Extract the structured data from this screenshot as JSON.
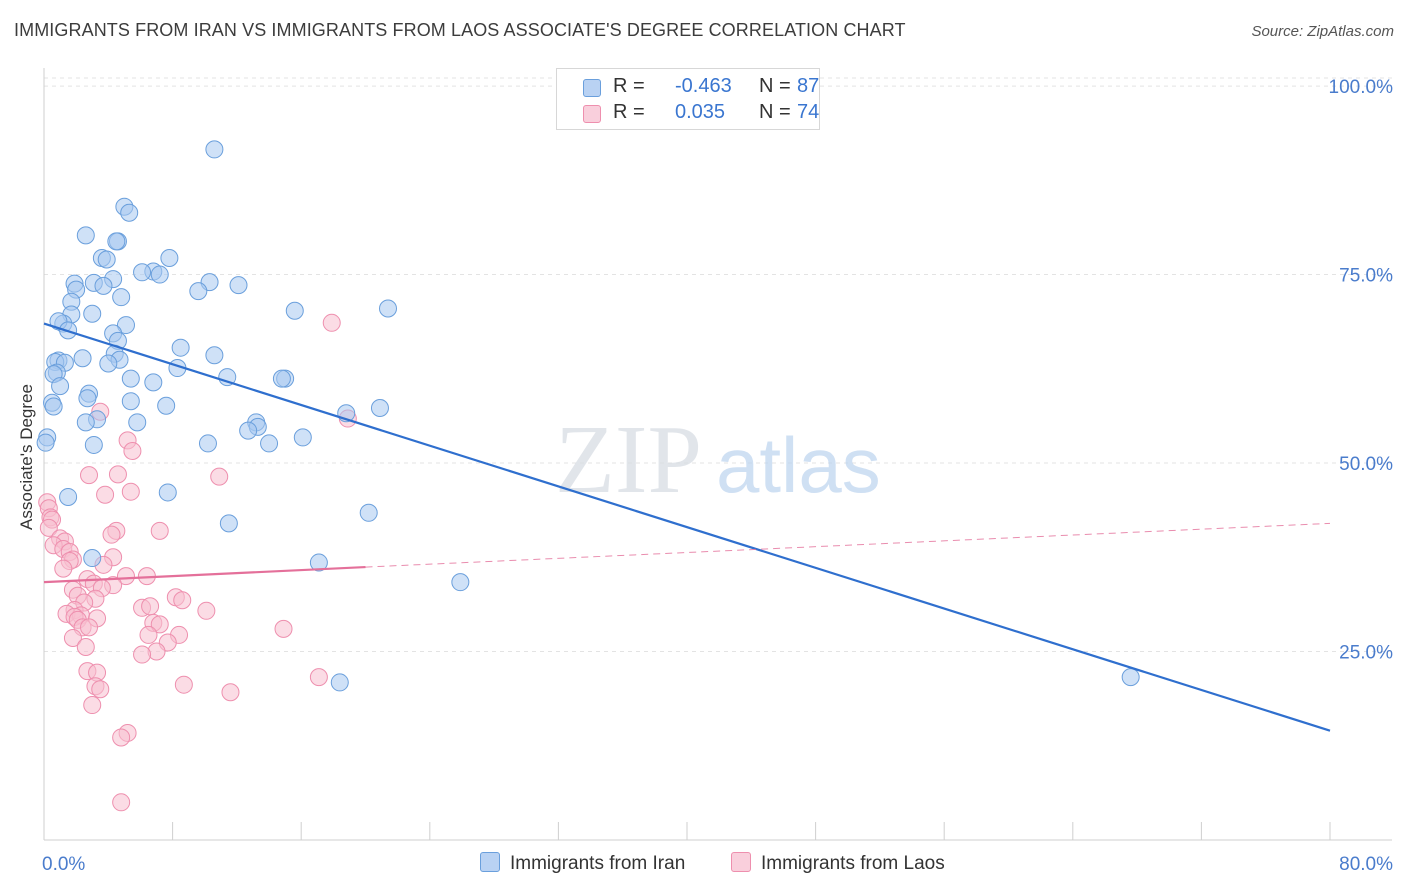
{
  "title": "IMMIGRANTS FROM IRAN VS IMMIGRANTS FROM LAOS ASSOCIATE'S DEGREE CORRELATION CHART",
  "source": "Source: ZipAtlas.com",
  "watermark": {
    "part1": "ZIP",
    "part2": "atlas"
  },
  "legend": {
    "rows": [
      {
        "r_label": "R =",
        "r_value": "-0.463",
        "n_label": "N =",
        "n_value": "87"
      },
      {
        "r_label": "R =",
        "r_value": "0.035",
        "n_label": "N =",
        "n_value": "74"
      }
    ]
  },
  "colors": {
    "iran_fill": "#a8c8f0",
    "iran_stroke": "#6a9fdc",
    "iran_line": "#2f6fce",
    "laos_fill": "#f7bfd0",
    "laos_stroke": "#ee8fae",
    "laos_line": "#e4709a",
    "axis_text": "#4a7ccc",
    "grid": "#e3e3e3"
  },
  "chart_data": {
    "type": "scatter",
    "title": "IMMIGRANTS FROM IRAN VS IMMIGRANTS FROM LAOS ASSOCIATE'S DEGREE CORRELATION CHART",
    "xlabel": "",
    "ylabel": "Associate's Degree",
    "xlim": [
      0,
      80
    ],
    "ylim": [
      0,
      102
    ],
    "x_tick_labels": [
      "0.0%",
      "80.0%"
    ],
    "y_ticks": [
      {
        "value": 25,
        "label": "25.0%"
      },
      {
        "value": 50,
        "label": "50.0%"
      },
      {
        "value": 75,
        "label": "75.0%"
      },
      {
        "value": 100,
        "label": "100.0%"
      }
    ],
    "grid": true,
    "legend_position": "bottom-center",
    "series": [
      {
        "name": "Immigrants from Iran",
        "r": -0.463,
        "n": 87,
        "trend": {
          "x1": 0,
          "y1": 68.5,
          "x2": 80,
          "y2": 14.5,
          "style": "solid"
        },
        "points": [
          [
            10.6,
            91.6
          ],
          [
            5.0,
            84.0
          ],
          [
            5.3,
            83.2
          ],
          [
            2.6,
            80.2
          ],
          [
            4.6,
            79.4
          ],
          [
            4.5,
            79.4
          ],
          [
            3.6,
            77.2
          ],
          [
            3.9,
            77.0
          ],
          [
            7.8,
            77.2
          ],
          [
            6.8,
            75.4
          ],
          [
            7.2,
            75.0
          ],
          [
            6.1,
            75.3
          ],
          [
            4.3,
            74.4
          ],
          [
            3.1,
            73.9
          ],
          [
            1.9,
            73.8
          ],
          [
            3.7,
            73.5
          ],
          [
            10.3,
            74.0
          ],
          [
            12.1,
            73.6
          ],
          [
            9.6,
            72.8
          ],
          [
            2.0,
            73.0
          ],
          [
            4.8,
            72.0
          ],
          [
            1.7,
            71.4
          ],
          [
            15.6,
            70.2
          ],
          [
            21.4,
            70.5
          ],
          [
            3.0,
            69.8
          ],
          [
            1.7,
            69.7
          ],
          [
            1.2,
            68.5
          ],
          [
            0.9,
            68.8
          ],
          [
            5.1,
            68.3
          ],
          [
            1.5,
            67.6
          ],
          [
            4.3,
            67.2
          ],
          [
            4.6,
            66.2
          ],
          [
            8.5,
            65.3
          ],
          [
            4.4,
            64.5
          ],
          [
            2.4,
            63.9
          ],
          [
            10.6,
            64.3
          ],
          [
            4.7,
            63.7
          ],
          [
            0.9,
            63.6
          ],
          [
            0.7,
            63.4
          ],
          [
            1.3,
            63.3
          ],
          [
            4.0,
            63.2
          ],
          [
            8.3,
            62.6
          ],
          [
            0.8,
            62.0
          ],
          [
            0.6,
            61.8
          ],
          [
            5.4,
            61.2
          ],
          [
            15.0,
            61.2
          ],
          [
            14.8,
            61.2
          ],
          [
            11.4,
            61.4
          ],
          [
            6.8,
            60.7
          ],
          [
            1.0,
            60.2
          ],
          [
            2.8,
            59.2
          ],
          [
            2.7,
            58.6
          ],
          [
            5.4,
            58.2
          ],
          [
            7.6,
            57.6
          ],
          [
            0.5,
            58.0
          ],
          [
            0.6,
            57.5
          ],
          [
            18.8,
            56.6
          ],
          [
            20.9,
            57.3
          ],
          [
            3.3,
            55.8
          ],
          [
            2.6,
            55.4
          ],
          [
            5.8,
            55.4
          ],
          [
            13.2,
            55.4
          ],
          [
            13.3,
            54.8
          ],
          [
            12.7,
            54.3
          ],
          [
            16.1,
            53.4
          ],
          [
            0.2,
            53.4
          ],
          [
            0.1,
            52.7
          ],
          [
            10.2,
            52.6
          ],
          [
            14.0,
            52.6
          ],
          [
            3.1,
            52.4
          ],
          [
            1.5,
            45.5
          ],
          [
            7.7,
            46.1
          ],
          [
            20.2,
            43.4
          ],
          [
            11.5,
            42.0
          ],
          [
            3.0,
            37.4
          ],
          [
            17.1,
            36.8
          ],
          [
            25.9,
            34.2
          ],
          [
            18.4,
            20.9
          ],
          [
            67.6,
            21.6
          ]
        ]
      },
      {
        "name": "Immigrants from Laos",
        "r": 0.035,
        "n": 74,
        "trend": {
          "x1": 0,
          "y1": 34.2,
          "x2": 20,
          "y2": 36.2,
          "dash_x2": 80,
          "dash_y2": 42.0,
          "style": "solid-then-dashed"
        },
        "points": [
          [
            17.9,
            68.6
          ],
          [
            3.5,
            56.8
          ],
          [
            18.9,
            55.9
          ],
          [
            5.2,
            53.0
          ],
          [
            5.5,
            51.6
          ],
          [
            4.6,
            48.5
          ],
          [
            2.8,
            48.4
          ],
          [
            10.9,
            48.2
          ],
          [
            5.4,
            46.2
          ],
          [
            3.8,
            45.8
          ],
          [
            0.2,
            44.8
          ],
          [
            0.3,
            44.0
          ],
          [
            0.4,
            42.8
          ],
          [
            0.5,
            42.5
          ],
          [
            0.3,
            41.4
          ],
          [
            4.5,
            41.0
          ],
          [
            7.2,
            41.0
          ],
          [
            4.2,
            40.5
          ],
          [
            1.0,
            40.0
          ],
          [
            1.3,
            39.6
          ],
          [
            0.6,
            39.1
          ],
          [
            1.2,
            38.6
          ],
          [
            1.6,
            38.2
          ],
          [
            1.8,
            37.2
          ],
          [
            4.3,
            37.5
          ],
          [
            1.6,
            37.0
          ],
          [
            3.7,
            36.5
          ],
          [
            1.2,
            36.0
          ],
          [
            5.1,
            35.0
          ],
          [
            6.4,
            35.0
          ],
          [
            2.7,
            34.6
          ],
          [
            3.1,
            34.0
          ],
          [
            4.3,
            33.8
          ],
          [
            3.6,
            33.4
          ],
          [
            1.8,
            33.2
          ],
          [
            2.1,
            32.4
          ],
          [
            3.2,
            32.0
          ],
          [
            8.2,
            32.2
          ],
          [
            2.5,
            31.5
          ],
          [
            8.6,
            31.8
          ],
          [
            6.1,
            30.8
          ],
          [
            6.6,
            31.0
          ],
          [
            1.9,
            30.5
          ],
          [
            10.1,
            30.4
          ],
          [
            1.4,
            30.0
          ],
          [
            2.3,
            29.8
          ],
          [
            1.9,
            29.6
          ],
          [
            2.1,
            29.2
          ],
          [
            3.3,
            29.4
          ],
          [
            6.8,
            28.8
          ],
          [
            7.2,
            28.6
          ],
          [
            2.4,
            28.2
          ],
          [
            2.8,
            28.2
          ],
          [
            14.9,
            28.0
          ],
          [
            6.5,
            27.2
          ],
          [
            8.4,
            27.2
          ],
          [
            1.8,
            26.8
          ],
          [
            7.7,
            26.2
          ],
          [
            2.6,
            25.6
          ],
          [
            7.0,
            25.0
          ],
          [
            6.1,
            24.6
          ],
          [
            2.7,
            22.4
          ],
          [
            3.3,
            22.2
          ],
          [
            17.1,
            21.6
          ],
          [
            3.2,
            20.4
          ],
          [
            8.7,
            20.6
          ],
          [
            3.5,
            20.0
          ],
          [
            11.6,
            19.6
          ],
          [
            3.0,
            17.9
          ],
          [
            5.2,
            14.2
          ],
          [
            4.8,
            13.6
          ],
          [
            4.8,
            5.0
          ]
        ]
      }
    ]
  },
  "bottom_legend": [
    {
      "label": "Immigrants from Iran"
    },
    {
      "label": "Immigrants from Laos"
    }
  ]
}
